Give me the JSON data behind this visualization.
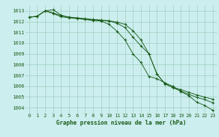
{
  "title": "Graphe pression niveau de la mer (hPa)",
  "background_color": "#cceeee",
  "grid_color": "#99ccbb",
  "line_color": "#1a5c1a",
  "tick_color": "#1a5c1a",
  "xlim": [
    -0.5,
    23.5
  ],
  "ylim": [
    1003.5,
    1013.5
  ],
  "yticks": [
    1004,
    1005,
    1006,
    1007,
    1008,
    1009,
    1010,
    1011,
    1012,
    1013
  ],
  "xticks": [
    0,
    1,
    2,
    3,
    4,
    5,
    6,
    7,
    8,
    9,
    10,
    11,
    12,
    13,
    14,
    15,
    16,
    17,
    18,
    19,
    20,
    21,
    22,
    23
  ],
  "series": [
    {
      "x": [
        0,
        1,
        2,
        3,
        4,
        5,
        6,
        7,
        8,
        9,
        10,
        11,
        12,
        13,
        14,
        15,
        16,
        17,
        18,
        19,
        20,
        21,
        22,
        23
      ],
      "y": [
        1012.4,
        1012.5,
        1013.0,
        1013.1,
        1012.6,
        1012.4,
        1012.3,
        1012.2,
        1012.1,
        1012.05,
        1011.75,
        1011.1,
        1010.3,
        1009.0,
        1008.2,
        1006.9,
        1006.7,
        1006.3,
        1006.0,
        1005.5,
        1005.1,
        1004.5,
        1004.2,
        1003.75
      ]
    },
    {
      "x": [
        0,
        1,
        2,
        3,
        4,
        5,
        6,
        7,
        8,
        9,
        10,
        11,
        12,
        13,
        14,
        15,
        16,
        17,
        18,
        19,
        20,
        21,
        22,
        23
      ],
      "y": [
        1012.4,
        1012.5,
        1013.0,
        1012.75,
        1012.45,
        1012.35,
        1012.28,
        1012.22,
        1012.18,
        1012.12,
        1012.05,
        1011.85,
        1011.45,
        1010.55,
        1009.75,
        1009.0,
        1007.1,
        1006.25,
        1005.85,
        1005.55,
        1005.25,
        1004.95,
        1004.75,
        1004.45
      ]
    },
    {
      "x": [
        0,
        1,
        2,
        3,
        4,
        5,
        6,
        7,
        8,
        9,
        10,
        11,
        12,
        13,
        14,
        15,
        16,
        17,
        18,
        19,
        20,
        21,
        22,
        23
      ],
      "y": [
        1012.4,
        1012.5,
        1013.0,
        1012.82,
        1012.55,
        1012.42,
        1012.35,
        1012.28,
        1012.2,
        1012.15,
        1012.08,
        1011.95,
        1011.75,
        1011.15,
        1010.3,
        1009.0,
        1007.15,
        1006.2,
        1005.88,
        1005.68,
        1005.43,
        1005.18,
        1004.98,
        1004.78
      ]
    }
  ]
}
